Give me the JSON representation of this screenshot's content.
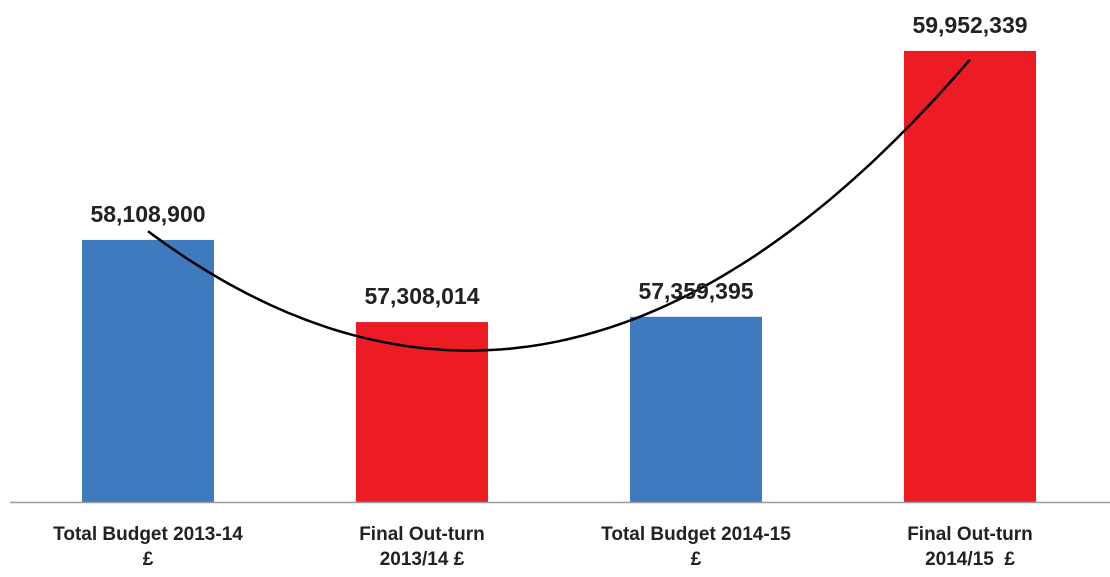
{
  "chart_data": {
    "type": "bar",
    "categories": [
      [
        "Total Budget 2013-14",
        "£"
      ],
      [
        "Final Out-turn",
        "2013/14 £"
      ],
      [
        "Total Budget 2014-15",
        "£"
      ],
      [
        "Final Out-turn",
        "2014/15  £"
      ]
    ],
    "values": [
      58108900,
      57308014,
      57359395,
      59952339
    ],
    "value_labels": [
      "58,108,900",
      "57,308,014",
      "57,359,395",
      "59,952,339"
    ],
    "colors": [
      "#3f7abe",
      "#ed1c24",
      "#3f7abe",
      "#ed1c24"
    ],
    "ylim": [
      55553000,
      60254000
    ],
    "grid": false,
    "trendline": {
      "type": "polynomial",
      "order": 2,
      "color": "#000000"
    }
  }
}
